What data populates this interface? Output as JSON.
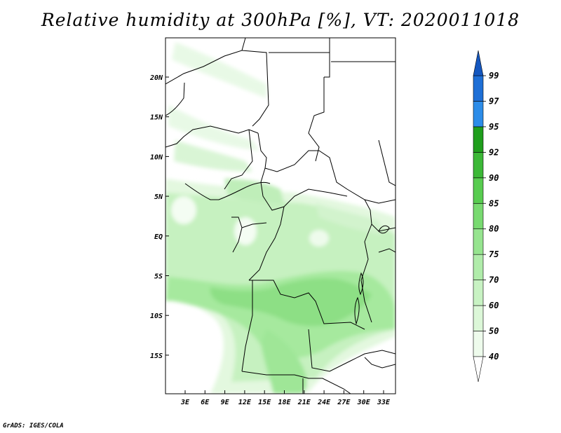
{
  "title": "Relative humidity at 300hPa [%], VT: 2020011018",
  "credit": "GrADS: IGES/COLA",
  "map": {
    "lon_ticks": [
      "3E",
      "6E",
      "9E",
      "12E",
      "15E",
      "18E",
      "21E",
      "24E",
      "27E",
      "30E",
      "33E"
    ],
    "lat_ticks": [
      "20N",
      "15N",
      "10N",
      "5N",
      "EQ",
      "5S",
      "10S",
      "15S"
    ]
  },
  "colorbar": {
    "labels": [
      "40",
      "50",
      "60",
      "70",
      "75",
      "80",
      "85",
      "90",
      "92",
      "95",
      "97",
      "99"
    ],
    "colors": [
      "#ffffff",
      "#eefbec",
      "#dcf7d8",
      "#c8f2c3",
      "#b0ecaa",
      "#96e48f",
      "#78da70",
      "#58cc50",
      "#3cb837",
      "#1f9e1c",
      "#2c8ce8",
      "#1e6fd6",
      "#1457bf"
    ]
  }
}
